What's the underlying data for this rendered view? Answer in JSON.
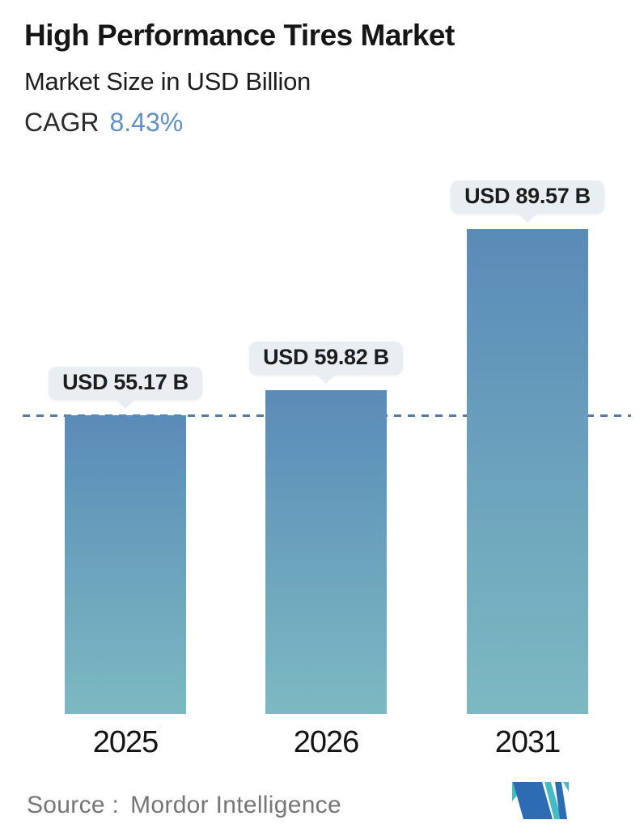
{
  "header": {
    "title": "High Performance Tires Market",
    "subtitle": "Market Size in USD Billion",
    "cagr_label": "CAGR",
    "cagr_value": "8.43%"
  },
  "chart_data": {
    "type": "bar",
    "title": "High Performance Tires Market",
    "ylabel": "Market Size in USD Billion",
    "unit": "USD Billion",
    "cagr_percent": 8.43,
    "categories": [
      "2025",
      "2026",
      "2031"
    ],
    "values": [
      55.17,
      59.82,
      89.57
    ],
    "data_labels": [
      "USD 55.17 B",
      "USD 59.82 B",
      "USD 89.57 B"
    ],
    "bars": [
      {
        "year": "2025",
        "value": 55.17,
        "callout": "USD 55.17 B"
      },
      {
        "year": "2026",
        "value": 59.82,
        "callout": "USD 59.82 B"
      },
      {
        "year": "2031",
        "value": 89.57,
        "callout": "USD 89.57 B"
      }
    ],
    "reference_line": {
      "style": "dashed",
      "value": 55.17
    },
    "ylim": [
      0,
      95
    ],
    "grid": false,
    "legend": false
  },
  "footer": {
    "source_label": "Source :",
    "source_value": "Mordor Intelligence",
    "logo": "mordor-intelligence-logo"
  },
  "colors": {
    "bar_top": "#5a8bb8",
    "bar_bottom": "#7db9c2",
    "dashed_line": "#4f7ba6",
    "callout_bg": "#e8eef1",
    "cagr_value": "#6090c0",
    "logo_teal": "#45bcc3",
    "logo_blue": "#2d6cb2"
  }
}
